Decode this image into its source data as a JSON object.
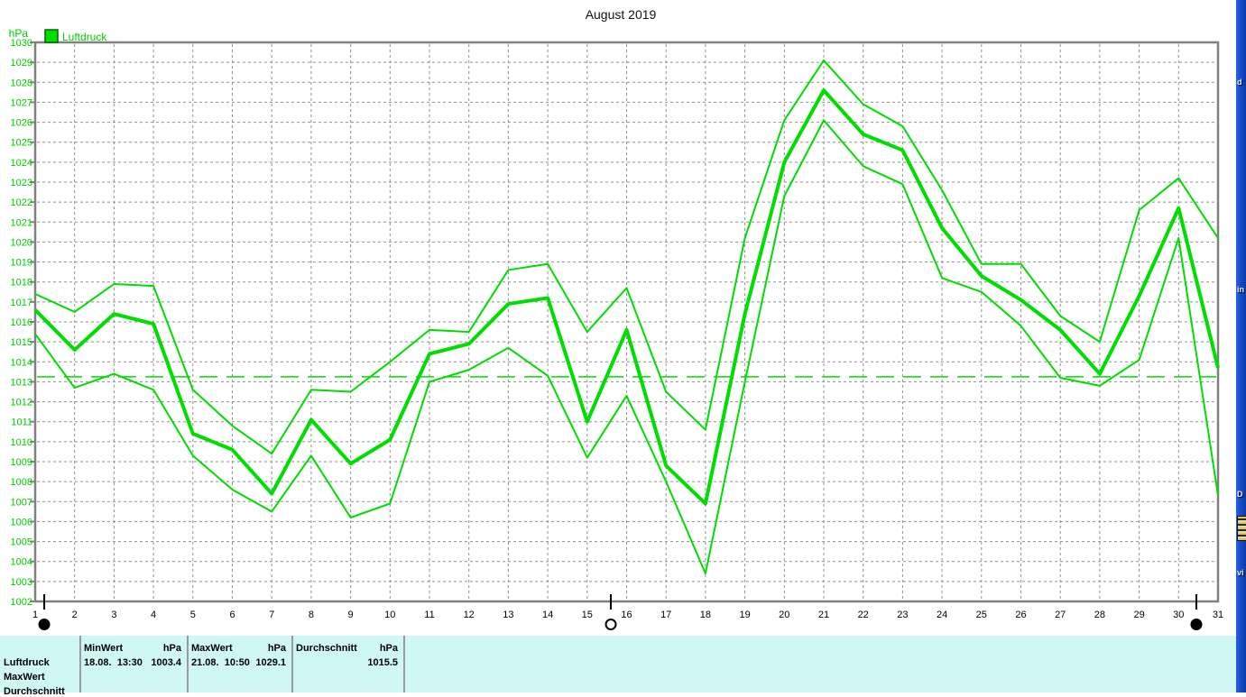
{
  "window": {
    "title": "August 2019"
  },
  "chart_data": {
    "type": "line",
    "title": "August 2019",
    "ylabel": "hPa",
    "legend": {
      "label": "Luftdruck",
      "position": "top-left"
    },
    "line_color": "#00DD00",
    "label_color": "#00CC00",
    "grid": "dashed",
    "ylim": [
      1002,
      1030
    ],
    "ytick_step": 1,
    "xlim": [
      1,
      31
    ],
    "reference_line": 1013.25,
    "x_days": [
      1,
      2,
      3,
      4,
      5,
      6,
      7,
      8,
      9,
      10,
      11,
      12,
      13,
      14,
      15,
      16,
      17,
      18,
      19,
      20,
      21,
      22,
      23,
      24,
      25,
      26,
      27,
      28,
      29,
      30,
      31
    ],
    "series": [
      {
        "name": "MaxWert",
        "width": 2,
        "values": [
          1017.4,
          1016.5,
          1017.9,
          1017.8,
          1012.6,
          1010.8,
          1009.4,
          1012.6,
          1012.5,
          1014.0,
          1015.6,
          1015.5,
          1018.6,
          1018.9,
          1015.5,
          1017.7,
          1012.5,
          1010.6,
          1020.2,
          1026.1,
          1029.1,
          1026.9,
          1025.8,
          1022.6,
          1018.9,
          1018.9,
          1016.3,
          1015.0,
          1021.6,
          1023.2,
          1020.2
        ]
      },
      {
        "name": "MinWert",
        "width": 2,
        "values": [
          1015.4,
          1012.7,
          1013.4,
          1012.6,
          1009.3,
          1007.6,
          1006.5,
          1009.3,
          1006.2,
          1006.9,
          1013.0,
          1013.6,
          1014.7,
          1013.3,
          1009.2,
          1012.3,
          1008.0,
          1003.4,
          1013.0,
          1022.3,
          1026.1,
          1023.8,
          1022.9,
          1018.2,
          1017.5,
          1015.8,
          1013.2,
          1012.8,
          1014.1,
          1020.2,
          1007.3
        ]
      },
      {
        "name": "Durchschnitt",
        "width": 4,
        "values": [
          1016.6,
          1014.6,
          1016.4,
          1015.9,
          1010.4,
          1009.6,
          1007.4,
          1011.1,
          1008.9,
          1010.1,
          1014.4,
          1014.9,
          1016.9,
          1017.2,
          1011.0,
          1015.6,
          1008.8,
          1006.9,
          1016.4,
          1024.0,
          1027.6,
          1025.4,
          1024.6,
          1020.7,
          1018.3,
          1017.1,
          1015.6,
          1013.4,
          1017.3,
          1021.7,
          1013.7
        ]
      }
    ]
  },
  "slider": {
    "markers": [
      {
        "day": 1.23,
        "style": "filled"
      },
      {
        "day": 15.6,
        "style": "open"
      },
      {
        "day": 30.45,
        "style": "filled"
      }
    ]
  },
  "summary_panel": {
    "row_labels": [
      "Luftdruck",
      "MaxWert",
      "Durchschnitt"
    ],
    "columns": [
      {
        "header": "MinWert",
        "unit": "hPa",
        "value_left": "18.08.  13:30",
        "value_right": "1003.4"
      },
      {
        "header": "MaxWert",
        "unit": "hPa",
        "value_left": "21.08.  10:50",
        "value_right": "1029.1"
      },
      {
        "header": "Durchschnitt",
        "unit": "hPa",
        "value_left": "",
        "value_right": "1015.5"
      }
    ]
  },
  "desktop_strip": {
    "fragments": [
      "d",
      "in",
      "D",
      "vi"
    ]
  }
}
